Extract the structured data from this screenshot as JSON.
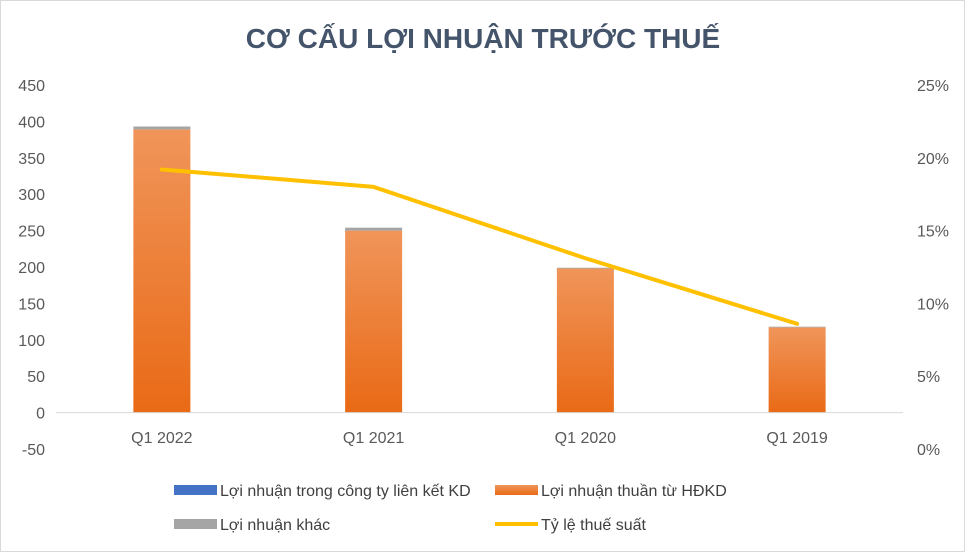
{
  "chart_data": {
    "type": "bar",
    "title": "CƠ CẤU LỢI NHUẬN TRƯỚC THUẾ",
    "categories": [
      "Q1 2022",
      "Q1 2021",
      "Q1 2020",
      "Q1 2019"
    ],
    "series": [
      {
        "name": "Lợi nhuận trong công ty liên kết KD",
        "kind": "bar",
        "axis": "left",
        "color": "#4472c4",
        "values": [
          0,
          0,
          0,
          0
        ]
      },
      {
        "name": "Lợi nhuận thuần từ HĐKD",
        "kind": "bar",
        "axis": "left",
        "color": "#ed7d31",
        "values": [
          389,
          250,
          198,
          117
        ]
      },
      {
        "name": "Lợi nhuận khác",
        "kind": "bar",
        "axis": "left",
        "color": "#a5a5a5",
        "values": [
          4,
          4,
          1,
          1
        ]
      },
      {
        "name": "Tỷ lệ thuế suất",
        "kind": "line",
        "axis": "right",
        "color": "#ffc000",
        "values": [
          19.2,
          18.0,
          13.1,
          8.6
        ]
      }
    ],
    "stacked": true,
    "y_left": {
      "min": -50,
      "max": 450,
      "ticks": [
        "450",
        "400",
        "350",
        "300",
        "250",
        "200",
        "150",
        "100",
        "50",
        "0",
        "-50"
      ]
    },
    "y_right": {
      "min": 0,
      "max": 25,
      "unit": "%",
      "ticks": [
        "25%",
        "20%",
        "15%",
        "10%",
        "5%",
        "0%"
      ]
    },
    "grid": false,
    "legend_position": "bottom"
  }
}
